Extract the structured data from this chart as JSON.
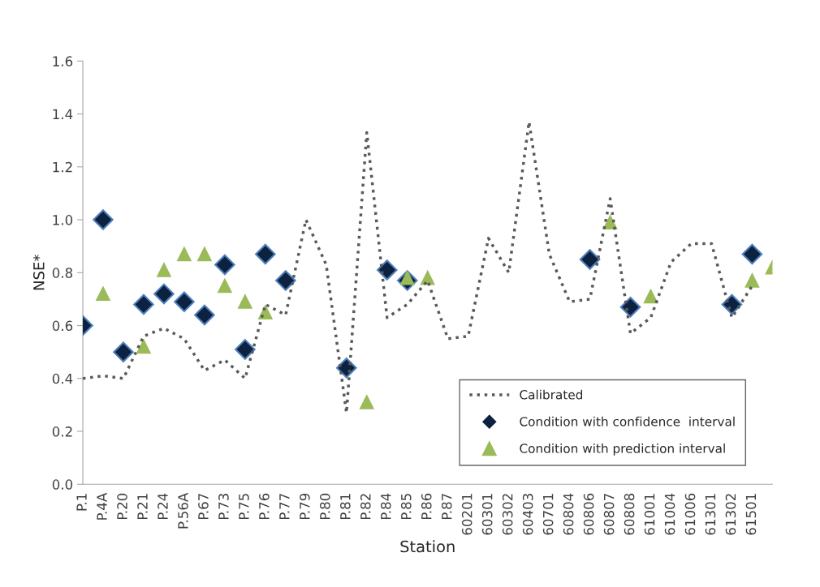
{
  "chart_data": {
    "type": "line",
    "xlabel": "Station",
    "ylabel": "NSE*",
    "categories": [
      "P.1",
      "P.4A",
      "P.20",
      "P.21",
      "P.24",
      "P.56A",
      "P.67",
      "P.73",
      "P.75",
      "P.76",
      "P.77",
      "P.79",
      "P.80",
      "P.81",
      "P.82",
      "P.84",
      "P.85",
      "P.86",
      "P.87",
      "60201",
      "60301",
      "60302",
      "60403",
      "60701",
      "60804",
      "60806",
      "60807",
      "60808",
      "61001",
      "61004",
      "61006",
      "61301",
      "61302",
      "61501",
      null
    ],
    "series": [
      {
        "name": "Calibrated",
        "color": "#595959",
        "line_style": "dotted",
        "marker": "none",
        "values": [
          0.4,
          0.41,
          0.4,
          0.56,
          0.59,
          0.55,
          0.43,
          0.47,
          0.4,
          0.68,
          0.64,
          1.0,
          0.83,
          0.27,
          1.33,
          0.63,
          0.68,
          0.77,
          0.55,
          0.56,
          0.93,
          0.8,
          1.37,
          0.87,
          0.69,
          0.7,
          1.08,
          0.57,
          0.63,
          0.84,
          0.91,
          0.91,
          0.63,
          0.75,
          null
        ]
      },
      {
        "name": "Condition with confidence  interval",
        "type": "scatter",
        "color": "#0d2240",
        "marker": "diamond",
        "values": [
          0.6,
          1.0,
          0.5,
          0.68,
          0.72,
          0.69,
          0.64,
          0.83,
          0.51,
          0.87,
          0.77,
          null,
          null,
          0.44,
          null,
          0.81,
          0.77,
          null,
          null,
          null,
          null,
          null,
          null,
          null,
          null,
          0.85,
          null,
          0.67,
          null,
          null,
          null,
          null,
          0.68,
          0.87,
          null
        ]
      },
      {
        "name": "Condition with prediction interval",
        "type": "scatter",
        "color": "#9bbb59",
        "marker": "triangle",
        "values": [
          null,
          0.72,
          null,
          0.52,
          0.81,
          0.87,
          0.87,
          0.75,
          0.69,
          0.65,
          null,
          null,
          null,
          null,
          0.31,
          null,
          0.78,
          0.78,
          null,
          null,
          null,
          null,
          null,
          null,
          null,
          null,
          0.99,
          null,
          0.71,
          null,
          null,
          null,
          null,
          0.77,
          0.82
        ]
      }
    ],
    "ylim": [
      0,
      1.6
    ],
    "yticks": [
      {
        "value": 0,
        "label": "0.0"
      },
      0.2,
      0.4,
      0.6,
      0.8,
      {
        "value": 1.0,
        "label": "1.0"
      },
      1.2,
      1.4,
      1.6
    ],
    "grid": false,
    "legend": "bottom right"
  }
}
